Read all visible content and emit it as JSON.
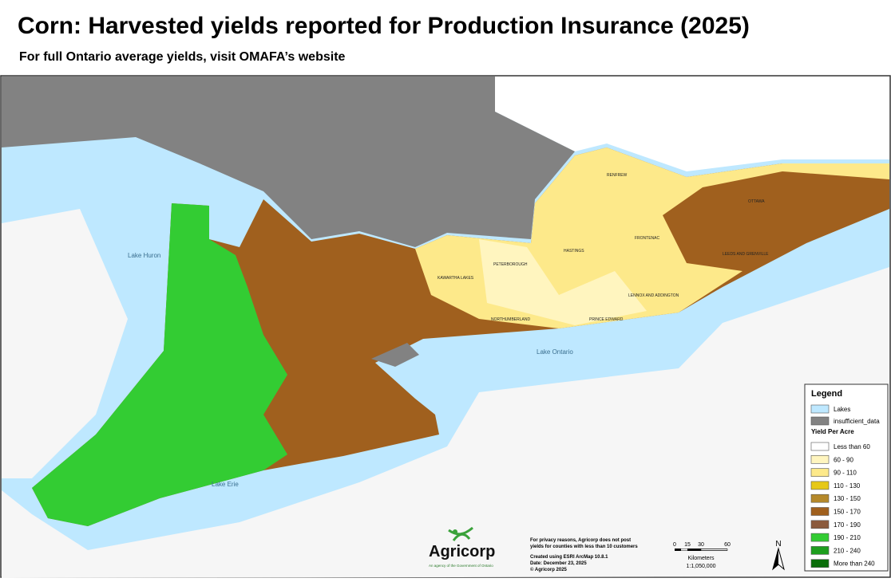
{
  "header": {
    "title": "Corn: Harvested yields reported for Production Insurance (2025)",
    "subtitle": "For full Ontario average yields, visit OMAFA’s website"
  },
  "map": {
    "lake_labels": [
      "Lake Huron",
      "Lake Ontario",
      "Lake Erie"
    ],
    "region_labels": [
      "PETERBOROUGH",
      "KAWARTHA LAKES",
      "NORTHUMBERLAND",
      "PRINCE EDWARD",
      "LENNOX AND ADDINGTON",
      "HASTINGS",
      "RENFREW",
      "FRONTENAC",
      "LEEDS AND GRENVILLE",
      "OTTAWA"
    ]
  },
  "legend": {
    "title": "Legend",
    "base_items": [
      {
        "label": "Lakes",
        "color": "#bee8ff"
      },
      {
        "label": "insufficient_data",
        "color": "#828282"
      }
    ],
    "yield_heading": "Yield Per Acre",
    "yield_items": [
      {
        "label": "Less than 60",
        "color": "#ffffff"
      },
      {
        "label": "60 - 90",
        "color": "#fff5bf"
      },
      {
        "label": "90 - 110",
        "color": "#fde98a"
      },
      {
        "label": "110 - 130",
        "color": "#e6c818"
      },
      {
        "label": "130 - 150",
        "color": "#b5892b"
      },
      {
        "label": "150 - 170",
        "color": "#a0601e"
      },
      {
        "label": "170 - 190",
        "color": "#8b5a3c"
      },
      {
        "label": "190 - 210",
        "color": "#33cc33"
      },
      {
        "label": "210 - 240",
        "color": "#1e9e1e"
      },
      {
        "label": "More than 240",
        "color": "#0a6e0a"
      }
    ]
  },
  "footer": {
    "logo": "Agricorp",
    "tagline": "An agency of the Government of Ontario",
    "notes": [
      "For privacy reasons, Agricorp does not post",
      "yields for counties with less than 10 customers"
    ],
    "credits": [
      "Created using ESRI ArcMap 10.8.1",
      "Date: December 23, 2025",
      "© Agricorp 2025"
    ],
    "scale": {
      "ticks": [
        "0",
        "15",
        "30",
        "60"
      ],
      "unit": "Kilometers",
      "ratio": "1:1,050,000"
    },
    "north": "N"
  }
}
